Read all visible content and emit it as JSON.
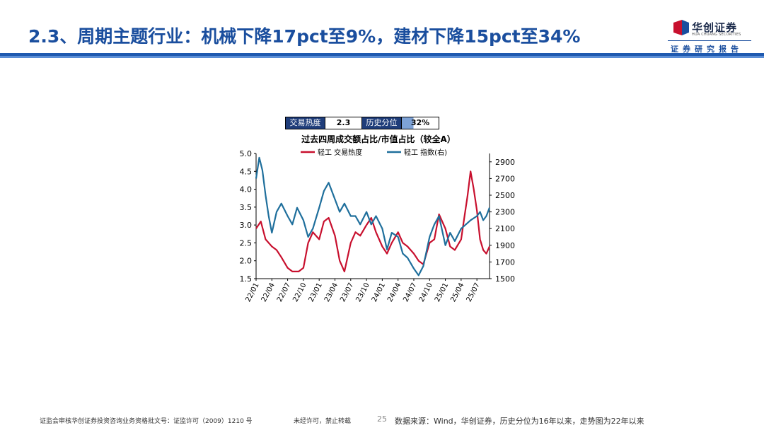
{
  "header": {
    "title": "2.3、周期主题行业：机械下降17pct至9%，建材下降15pct至34%",
    "logo_name": "华创证券",
    "logo_en": "HUA CHUANG SECURITIES",
    "subtitle": "证券研究报告"
  },
  "heat_table": {
    "label1": "交易热度",
    "value1": "2.3",
    "label2": "历史分位",
    "value2": "32%",
    "percentile_fraction": 0.32
  },
  "chart_data": {
    "type": "line",
    "title": "过去四周成交额占比/市值占比（较全A）",
    "legend": [
      "轻工 交易热度",
      "轻工 指数(右)"
    ],
    "legend_position": "top",
    "x_ticks": [
      "22/01",
      "22/04",
      "22/07",
      "22/10",
      "23/01",
      "23/04",
      "23/07",
      "23/10",
      "24/01",
      "24/04",
      "24/07",
      "24/10",
      "25/01",
      "25/04",
      "25/07"
    ],
    "y_left": {
      "range": [
        1.5,
        5.0
      ],
      "ticks": [
        "1.5",
        "2.0",
        "2.5",
        "3.0",
        "3.5",
        "4.0",
        "4.5",
        "5.0"
      ]
    },
    "y_right": {
      "range": [
        1500,
        3000
      ],
      "ticks": [
        "1500",
        "1700",
        "1900",
        "2100",
        "2300",
        "2500",
        "2700",
        "2900"
      ]
    },
    "series": [
      {
        "name": "轻工 交易热度",
        "axis": "left",
        "color": "#c8102e",
        "x": [
          0,
          0.3,
          0.6,
          1,
          1.3,
          1.6,
          2,
          2.3,
          2.7,
          3,
          3.3,
          3.6,
          4,
          4.3,
          4.6,
          5,
          5.3,
          5.6,
          6,
          6.3,
          6.6,
          7,
          7.3,
          7.6,
          8,
          8.3,
          8.6,
          9,
          9.3,
          9.6,
          10,
          10.3,
          10.6,
          11,
          11.3,
          11.6,
          12,
          12.3,
          12.6,
          13,
          13.2,
          13.4,
          13.6,
          13.8,
          14,
          14.2,
          14.4,
          14.6,
          14.8
        ],
        "values": [
          2.9,
          3.1,
          2.6,
          2.4,
          2.3,
          2.1,
          1.8,
          1.7,
          1.7,
          1.8,
          2.5,
          2.8,
          2.6,
          3.1,
          3.2,
          2.7,
          2.0,
          1.7,
          2.5,
          2.8,
          2.7,
          3.0,
          3.2,
          2.8,
          2.4,
          2.2,
          2.5,
          2.8,
          2.5,
          2.4,
          2.2,
          2.0,
          1.9,
          2.5,
          2.6,
          3.3,
          2.9,
          2.4,
          2.3,
          2.6,
          3.2,
          3.8,
          4.5,
          4.0,
          3.4,
          2.6,
          2.3,
          2.2,
          2.4
        ]
      },
      {
        "name": "轻工 指数(右)",
        "axis": "right",
        "color": "#1f6f9c",
        "x": [
          0,
          0.2,
          0.4,
          0.6,
          0.8,
          1,
          1.3,
          1.6,
          2,
          2.3,
          2.6,
          3,
          3.3,
          3.6,
          4,
          4.3,
          4.6,
          5,
          5.3,
          5.6,
          6,
          6.3,
          6.6,
          7,
          7.3,
          7.6,
          8,
          8.3,
          8.6,
          9,
          9.3,
          9.6,
          10,
          10.3,
          10.6,
          11,
          11.3,
          11.6,
          12,
          12.3,
          12.6,
          13,
          13.3,
          13.6,
          14,
          14.2,
          14.4,
          14.6,
          14.8
        ],
        "values": [
          2700,
          2950,
          2800,
          2500,
          2250,
          2050,
          2300,
          2400,
          2250,
          2150,
          2350,
          2200,
          2000,
          2100,
          2350,
          2550,
          2650,
          2450,
          2300,
          2400,
          2250,
          2250,
          2150,
          2300,
          2150,
          2250,
          2100,
          1850,
          2050,
          2000,
          1800,
          1750,
          1620,
          1540,
          1650,
          2000,
          2150,
          2250,
          1900,
          2050,
          1950,
          2100,
          2150,
          2200,
          2250,
          2300,
          2200,
          2250,
          2350
        ]
      }
    ]
  },
  "footer": {
    "license": "证监会审核华创证券投资咨询业务资格批文号：证监许可（2009）1210 号",
    "notice": "未经许可，禁止转载",
    "page": "25",
    "source": "数据来源：Wind，华创证券，历史分位为16年以来，走势图为22年以来"
  }
}
